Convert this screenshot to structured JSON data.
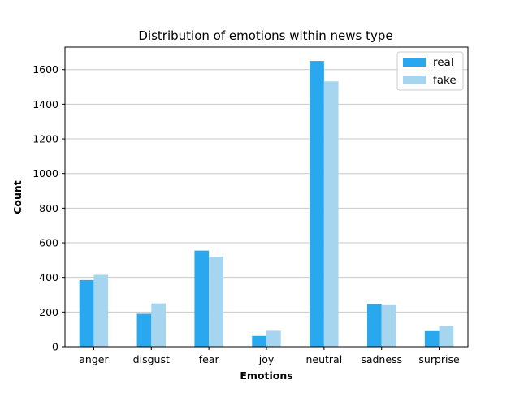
{
  "chart_data": {
    "type": "bar",
    "title": "Distribution of emotions within news type",
    "xlabel": "Emotions",
    "ylabel": "Count",
    "categories": [
      "anger",
      "disgust",
      "fear",
      "joy",
      "neutral",
      "sadness",
      "surprise"
    ],
    "series": [
      {
        "name": "real",
        "color": "#29a8ef",
        "values": [
          385,
          190,
          555,
          62,
          1650,
          245,
          90
        ]
      },
      {
        "name": "fake",
        "color": "#a6d6ef",
        "values": [
          415,
          250,
          520,
          92,
          1532,
          240,
          120
        ]
      }
    ],
    "ylim": [
      0,
      1730
    ],
    "yticks": [
      0,
      200,
      400,
      600,
      800,
      1000,
      1200,
      1400,
      1600
    ],
    "grid": {
      "y": true,
      "color": "#c8c8c8"
    },
    "legend_position": "top-right"
  }
}
